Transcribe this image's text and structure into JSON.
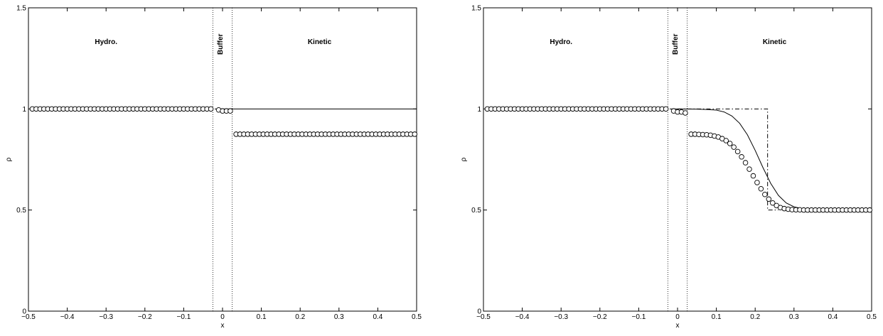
{
  "chart_data": [
    {
      "type": "line",
      "title": "",
      "xlabel": "x",
      "ylabel": "ρ",
      "xlim": [
        -0.5,
        0.5
      ],
      "ylim": [
        0,
        1.5
      ],
      "xticks": [
        "−0.5",
        "−0.4",
        "−0.3",
        "−0.2",
        "−0.1",
        "0",
        "0.1",
        "0.2",
        "0.3",
        "0.4",
        "0.5"
      ],
      "yticks": [
        "0",
        "0.5",
        "1",
        "1.5"
      ],
      "grid": false,
      "legend": "none",
      "regions": [
        {
          "label": "Hydro.",
          "x": -0.3,
          "y": 1.32,
          "rotated": false
        },
        {
          "label": "Buffer",
          "x": 0.0,
          "y": 1.32,
          "rotated": true
        },
        {
          "label": "Kinetic",
          "x": 0.25,
          "y": 1.32,
          "rotated": false
        }
      ],
      "boundaries": [
        -0.025,
        0.025
      ],
      "markers": {
        "hydro": {
          "x_start": -0.49,
          "x_end": -0.03,
          "step": 0.01,
          "y": 1.0
        },
        "buffer": [
          {
            "x": -0.01,
            "y": 0.995
          },
          {
            "x": 0.0,
            "y": 0.99
          },
          {
            "x": 0.01,
            "y": 0.99
          },
          {
            "x": 0.02,
            "y": 0.99
          }
        ],
        "kinetic": {
          "x_start": 0.035,
          "x_end": 0.495,
          "step": 0.01,
          "y": 0.875
        }
      },
      "series": [
        {
          "style": "solid",
          "x": [
            -0.02,
            0.5
          ],
          "y": [
            1.0,
            1.0
          ]
        }
      ]
    },
    {
      "type": "line",
      "title": "",
      "xlabel": "x",
      "ylabel": "ρ",
      "xlim": [
        -0.5,
        0.5
      ],
      "ylim": [
        0,
        1.5
      ],
      "xticks": [
        "−0.5",
        "−0.4",
        "−0.3",
        "−0.2",
        "−0.1",
        "0",
        "0.1",
        "0.2",
        "0.3",
        "0.4",
        "0.5"
      ],
      "yticks": [
        "0",
        "0.5",
        "1",
        "1.5"
      ],
      "grid": false,
      "legend": "none",
      "regions": [
        {
          "label": "Hydro.",
          "x": -0.3,
          "y": 1.32,
          "rotated": false
        },
        {
          "label": "Buffer",
          "x": 0.0,
          "y": 1.32,
          "rotated": true
        },
        {
          "label": "Kinetic",
          "x": 0.25,
          "y": 1.32,
          "rotated": false
        }
      ],
      "boundaries": [
        -0.025,
        0.025
      ],
      "markers": {
        "hydro": {
          "x_start": -0.49,
          "x_end": -0.03,
          "step": 0.01,
          "y": 1.0
        },
        "buffer": [
          {
            "x": -0.01,
            "y": 0.99
          },
          {
            "x": 0.0,
            "y": 0.985
          },
          {
            "x": 0.01,
            "y": 0.985
          },
          {
            "x": 0.02,
            "y": 0.98
          }
        ],
        "kinetic": {
          "x": [
            0.035,
            0.045,
            0.055,
            0.065,
            0.075,
            0.085,
            0.095,
            0.105,
            0.115,
            0.125,
            0.135,
            0.145,
            0.155,
            0.165,
            0.175,
            0.185,
            0.195,
            0.205,
            0.215,
            0.225,
            0.235,
            0.245,
            0.255,
            0.265,
            0.275,
            0.285,
            0.295,
            0.305,
            0.315,
            0.325,
            0.335,
            0.345,
            0.355,
            0.365,
            0.375,
            0.385,
            0.395,
            0.405,
            0.415,
            0.425,
            0.435,
            0.445,
            0.455,
            0.465,
            0.475,
            0.485,
            0.495
          ],
          "y": [
            0.875,
            0.875,
            0.874,
            0.873,
            0.872,
            0.87,
            0.866,
            0.861,
            0.853,
            0.843,
            0.829,
            0.811,
            0.789,
            0.763,
            0.734,
            0.702,
            0.669,
            0.636,
            0.605,
            0.577,
            0.554,
            0.535,
            0.522,
            0.512,
            0.507,
            0.504,
            0.502,
            0.501,
            0.501,
            0.5,
            0.5,
            0.5,
            0.5,
            0.5,
            0.5,
            0.5,
            0.5,
            0.5,
            0.5,
            0.5,
            0.5,
            0.5,
            0.5,
            0.5,
            0.5,
            0.5,
            0.5
          ]
        }
      },
      "series": [
        {
          "style": "solid",
          "x": [
            -0.02,
            0.0,
            0.05,
            0.08,
            0.1,
            0.12,
            0.14,
            0.16,
            0.18,
            0.2,
            0.22,
            0.24,
            0.26,
            0.28,
            0.3,
            0.32,
            0.35,
            0.4,
            0.45,
            0.5
          ],
          "y": [
            1.0,
            1.0,
            0.999,
            0.997,
            0.994,
            0.985,
            0.965,
            0.929,
            0.872,
            0.795,
            0.71,
            0.632,
            0.572,
            0.535,
            0.516,
            0.507,
            0.502,
            0.5,
            0.5,
            0.5
          ]
        },
        {
          "style": "dashdot",
          "x": [
            0.0,
            0.232,
            0.232,
            0.26
          ],
          "y": [
            1.0,
            1.0,
            0.5,
            0.5
          ]
        }
      ]
    }
  ]
}
